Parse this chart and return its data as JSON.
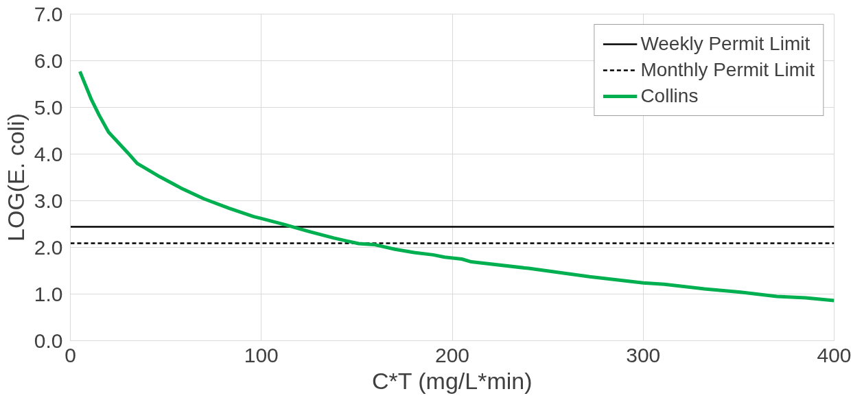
{
  "chart_data": {
    "type": "line",
    "xlabel": "C*T (mg/L*min)",
    "ylabel": "LOG(E. coli)",
    "xlim": [
      0,
      400
    ],
    "xticks": [
      0,
      100,
      200,
      300,
      400
    ],
    "ylim": [
      0,
      7
    ],
    "yticks": [
      {
        "value": 0,
        "label": "0.0"
      },
      {
        "value": 1,
        "label": "1.0"
      },
      {
        "value": 2,
        "label": "2.0"
      },
      {
        "value": 3,
        "label": "3.0"
      },
      {
        "value": 4,
        "label": "4.0"
      },
      {
        "value": 5,
        "label": "5.0"
      },
      {
        "value": 6,
        "label": "6.0"
      },
      {
        "value": 7,
        "label": "7.0"
      }
    ],
    "grid": true,
    "legend": "top right",
    "marker": "none",
    "line_style": "solid",
    "ref_lines": [
      {
        "axis": "y",
        "value": 2.44,
        "label": "Weekly Permit Limit",
        "color": "#000000",
        "line_style": "solid"
      },
      {
        "axis": "y",
        "value": 2.09,
        "label": "Monthly Permit Limit",
        "color": "#000000",
        "line_style": "dashed"
      }
    ],
    "series": [
      {
        "name": "Collins",
        "color": "#00b050",
        "x": [
          5,
          11,
          15,
          20,
          30,
          35,
          47,
          58,
          70,
          83,
          96,
          100,
          112,
          125,
          138,
          151,
          159,
          170,
          180,
          190,
          196,
          205,
          210,
          240,
          272,
          300,
          311,
          332,
          351,
          370,
          385,
          400
        ],
        "values": [
          5.77,
          5.17,
          4.84,
          4.47,
          4.03,
          3.8,
          3.51,
          3.27,
          3.04,
          2.84,
          2.66,
          2.62,
          2.49,
          2.34,
          2.2,
          2.08,
          2.06,
          1.96,
          1.89,
          1.84,
          1.79,
          1.75,
          1.69,
          1.55,
          1.37,
          1.24,
          1.21,
          1.11,
          1.04,
          0.95,
          0.92,
          0.86
        ]
      }
    ]
  }
}
